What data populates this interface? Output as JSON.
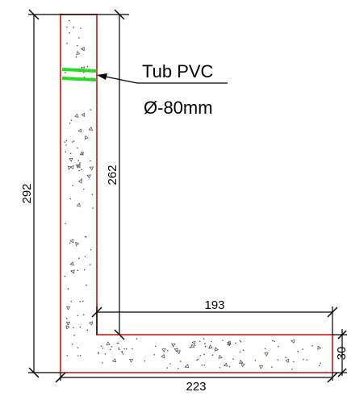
{
  "labels": {
    "pipe_line1": "Tub PVC",
    "pipe_line2": "Ø-80mm"
  },
  "dimensions": {
    "total_height": "292",
    "inner_height": "262",
    "inner_length": "193",
    "total_length": "223",
    "base_thickness": "30"
  },
  "colors": {
    "outline": "#d32f2f",
    "pipe": "#22dd22",
    "dimension": "#000000"
  }
}
